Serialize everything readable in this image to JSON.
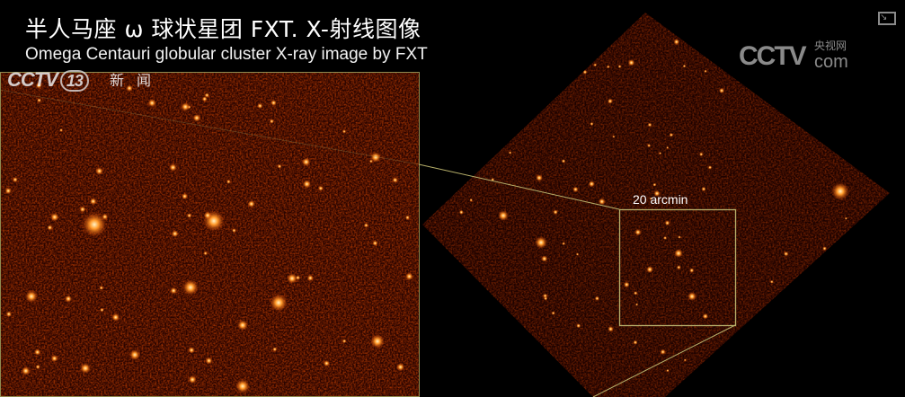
{
  "caption": {
    "title_cn": "半人马座 ω 球状星团 FXT. X-射线图像",
    "title_en": "Omega Centauri globular cluster X-ray image by FXT"
  },
  "channel_logo": {
    "text": "CCTV",
    "number": "13",
    "sub": "新闻"
  },
  "network_logo": {
    "text": "CCTV",
    "cn": "央视网",
    "suffix": "com"
  },
  "image": {
    "scale_label": "20 arcmin",
    "colormap_colors": [
      "#000000",
      "#5a0a00",
      "#c23a00",
      "#ff9a2a",
      "#fff2c0"
    ],
    "frame_color": "#b7b06a"
  },
  "controls": {
    "exit_fullscreen_icon": "exit-fullscreen-icon"
  }
}
